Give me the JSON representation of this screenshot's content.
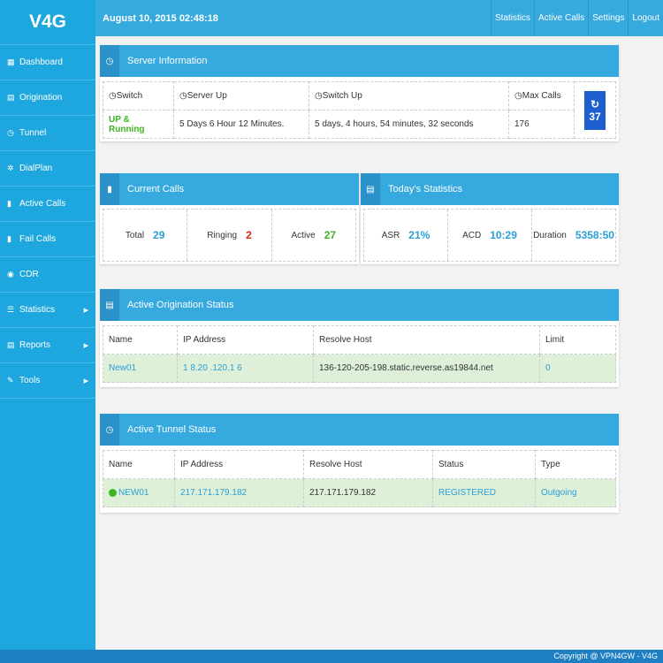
{
  "logo": "V4G",
  "sidebar": {
    "items": [
      {
        "label": "Dashboard",
        "icon": "▦"
      },
      {
        "label": "Origination",
        "icon": "▤"
      },
      {
        "label": "Tunnel",
        "icon": "◷"
      },
      {
        "label": "DialPlan",
        "icon": "✲"
      },
      {
        "label": "Active Calls",
        "icon": "▮"
      },
      {
        "label": "Fail Calls",
        "icon": "▮"
      },
      {
        "label": "CDR",
        "icon": "◉"
      },
      {
        "label": "Statistics",
        "icon": "☰",
        "submenu": true
      },
      {
        "label": "Reports",
        "icon": "▤",
        "submenu": true
      },
      {
        "label": "Tools",
        "icon": "✎",
        "submenu": true
      }
    ]
  },
  "topbar": {
    "datetime": "August 10, 2015 02:48:18",
    "links": [
      "Statistics",
      "Active Calls",
      "Settings",
      "Logout"
    ]
  },
  "server": {
    "title": "Server Information",
    "headers": [
      "Switch",
      "Server Up",
      "Switch Up",
      "Max Calls"
    ],
    "values": [
      "UP & Running",
      "5 Days 6 Hour 12 Minutes.",
      "5 days, 4 hours, 54 minutes, 32 seconds",
      "176"
    ],
    "refresh_count": "37"
  },
  "current": {
    "title": "Current Calls",
    "total_label": "Total",
    "total": "29",
    "ringing_label": "Ringing",
    "ringing": "2",
    "active_label": "Active",
    "active": "27"
  },
  "today": {
    "title": "Today's Statistics",
    "asr_label": "ASR",
    "asr": "21%",
    "acd_label": "ACD",
    "acd": "10:29",
    "duration_label": "Duration",
    "duration": "5358:50"
  },
  "origination": {
    "title": "Active Origination Status",
    "headers": [
      "Name",
      "IP Address",
      "Resolve Host",
      "Limit"
    ],
    "row": [
      "New01",
      "1 8.20 .120.1 6",
      "136-120-205-198.static.reverse.as19844.net",
      "0"
    ]
  },
  "tunnel": {
    "title": "Active Tunnel Status",
    "headers": [
      "Name",
      "IP Address",
      "Resolve Host",
      "Status",
      "Type"
    ],
    "row": [
      "NEW01",
      "217.171.179.182",
      "217.171.179.182",
      "REGISTERED",
      "Outgoing"
    ]
  },
  "footer": "Copyright @ VPN4GW - V4G",
  "colors": {
    "sidebar": "#1ea7de",
    "header": "#36a9df",
    "green": "#3cb521",
    "red": "#d9230f",
    "blue": "#2a9fd6"
  }
}
